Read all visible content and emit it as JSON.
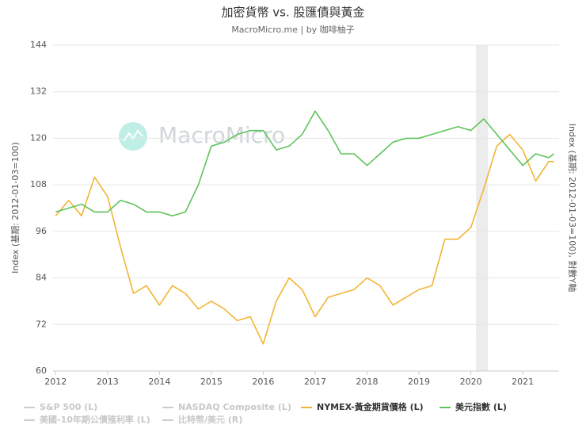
{
  "chart_data": {
    "type": "line",
    "title": "加密貨幣 vs. 股匯債與黃金",
    "subtitle": "MacroMicro.me | by 咖啡柚子",
    "watermark": "MacroMicro",
    "y_label": "Index (基期: 2012-01-03=100)",
    "y2_label": "Index (基期: 2012-01-03=100), 對數Y軸",
    "xlim": [
      2011.95,
      2021.7
    ],
    "xticks": [
      2012,
      2013,
      2014,
      2015,
      2016,
      2017,
      2018,
      2019,
      2020,
      2021
    ],
    "ylim": [
      60,
      144
    ],
    "yticks": [
      60,
      72,
      84,
      96,
      108,
      120,
      132,
      144
    ],
    "grid": true,
    "shaded_ranges": [
      [
        2020.1,
        2020.33
      ]
    ],
    "x": [
      2012.0,
      2012.25,
      2012.5,
      2012.75,
      2013.0,
      2013.25,
      2013.5,
      2013.75,
      2014.0,
      2014.25,
      2014.5,
      2014.75,
      2015.0,
      2015.25,
      2015.5,
      2015.75,
      2016.0,
      2016.25,
      2016.5,
      2016.75,
      2017.0,
      2017.25,
      2017.5,
      2017.75,
      2018.0,
      2018.25,
      2018.5,
      2018.75,
      2019.0,
      2019.25,
      2019.5,
      2019.75,
      2020.0,
      2020.25,
      2020.5,
      2020.75,
      2021.0,
      2021.25,
      2021.5,
      2021.6
    ],
    "series": [
      {
        "name": "S&P 500 (L)",
        "color": "#cccccc",
        "hidden": true,
        "values": [
          null,
          null,
          null,
          null,
          null,
          null,
          null,
          null,
          null,
          null,
          null,
          null,
          null,
          null,
          null,
          null,
          null,
          null,
          null,
          null,
          null,
          null,
          null,
          null,
          null,
          null,
          null,
          null,
          null,
          null,
          null,
          null,
          null,
          null,
          null,
          null,
          null,
          null,
          null,
          null
        ]
      },
      {
        "name": "NASDAQ Composite (L)",
        "color": "#cccccc",
        "hidden": true,
        "values": [
          null,
          null,
          null,
          null,
          null,
          null,
          null,
          null,
          null,
          null,
          null,
          null,
          null,
          null,
          null,
          null,
          null,
          null,
          null,
          null,
          null,
          null,
          null,
          null,
          null,
          null,
          null,
          null,
          null,
          null,
          null,
          null,
          null,
          null,
          null,
          null,
          null,
          null,
          null,
          null
        ]
      },
      {
        "name": "NYMEX-黃金期貨價格 (L)",
        "color": "#f2b535",
        "hidden": false,
        "values": [
          100,
          104,
          100,
          110,
          105,
          92,
          80,
          82,
          77,
          82,
          80,
          76,
          78,
          76,
          73,
          74,
          67,
          78,
          84,
          81,
          74,
          79,
          80,
          81,
          84,
          82,
          77,
          79,
          81,
          82,
          94,
          94,
          97,
          107,
          118,
          121,
          117,
          109,
          114,
          114
        ]
      },
      {
        "name": "美元指數 (L)",
        "color": "#5fc35b",
        "hidden": false,
        "values": [
          101,
          102,
          103,
          101,
          101,
          104,
          103,
          101,
          101,
          100,
          101,
          108,
          118,
          119,
          121,
          122,
          122,
          117,
          118,
          121,
          127,
          122,
          116,
          116,
          113,
          116,
          119,
          120,
          120,
          121,
          122,
          123,
          122,
          125,
          121,
          117,
          113,
          116,
          115,
          116
        ]
      },
      {
        "name": "美國-10年期公債殖利率 (L)",
        "color": "#cccccc",
        "hidden": true,
        "values": [
          null,
          null,
          null,
          null,
          null,
          null,
          null,
          null,
          null,
          null,
          null,
          null,
          null,
          null,
          null,
          null,
          null,
          null,
          null,
          null,
          null,
          null,
          null,
          null,
          null,
          null,
          null,
          null,
          null,
          null,
          null,
          null,
          null,
          null,
          null,
          null,
          null,
          null,
          null,
          null
        ]
      },
      {
        "name": "比特幣/美元 (R)",
        "color": "#cccccc",
        "hidden": true,
        "values": [
          null,
          null,
          null,
          null,
          null,
          null,
          null,
          null,
          null,
          null,
          null,
          null,
          null,
          null,
          null,
          null,
          null,
          null,
          null,
          null,
          null,
          null,
          null,
          null,
          null,
          null,
          null,
          null,
          null,
          null,
          null,
          null,
          null,
          null,
          null,
          null,
          null,
          null,
          null,
          null
        ]
      }
    ]
  }
}
